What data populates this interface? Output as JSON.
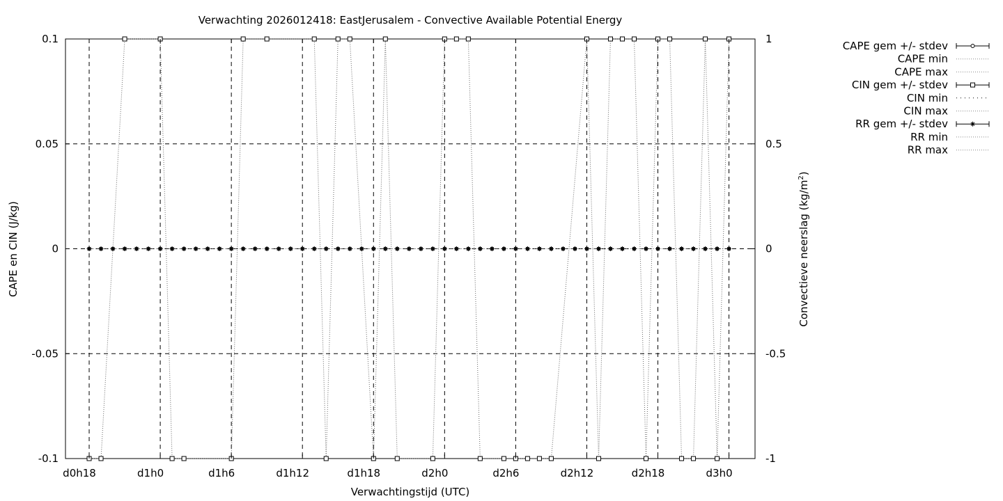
{
  "chart_data": {
    "type": "line",
    "title": "Verwachting 2026012418: EastJerusalem - Convective Available Potential Energy",
    "xlabel": "Verwachtingstijd (UTC)",
    "ylabel": "CAPE en CIN (J/kg)",
    "y2label_main": "Convectieve neerslag (kg/m",
    "y2label_sup": "2",
    "y2label_end": ")",
    "x_ticks": [
      "d0h18",
      "d1h0",
      "d1h6",
      "d1h12",
      "d1h18",
      "d2h0",
      "d2h6",
      "d2h12",
      "d2h18",
      "d3h0"
    ],
    "x_tick_hours": [
      18,
      24,
      30,
      36,
      42,
      48,
      54,
      60,
      66,
      72
    ],
    "xlim_hours": [
      16,
      74.2
    ],
    "ylim": [
      -0.1,
      0.1
    ],
    "y_ticks": [
      "0.1",
      "0.05",
      "0",
      "-0.05",
      "-0.1"
    ],
    "y_tick_values": [
      0.1,
      0.05,
      0,
      -0.05,
      -0.1
    ],
    "y2lim": [
      -1,
      1
    ],
    "y2_ticks": [
      "1",
      "0.5",
      "0",
      "-0.5",
      "-1"
    ],
    "y2_tick_values": [
      1,
      0.5,
      0,
      -0.5,
      -1
    ],
    "grid": true,
    "legend_position": "outside-right",
    "series": [
      {
        "name": "CAPE gem +/- stdev",
        "marker": "circle",
        "x_hours": [
          18,
          19,
          20,
          21,
          22,
          23,
          24,
          25,
          26,
          27,
          28,
          29,
          30,
          31,
          32,
          33,
          34,
          35,
          36,
          37,
          38,
          39,
          40,
          41,
          42,
          43,
          44,
          45,
          46,
          47,
          48,
          49,
          50,
          51,
          52,
          53,
          54,
          55,
          56,
          57,
          58,
          59,
          60,
          61,
          62,
          63,
          64,
          65,
          66,
          67,
          68,
          69,
          70,
          71,
          72
        ],
        "values": [
          0,
          0,
          0,
          0,
          0,
          0,
          0,
          0,
          0,
          0,
          0,
          0,
          0,
          0,
          0,
          0,
          0,
          0,
          0,
          0,
          0,
          0,
          0,
          0,
          0,
          0,
          0,
          0,
          0,
          0,
          0,
          0,
          0,
          0,
          0,
          0,
          0,
          0,
          0,
          0,
          0,
          0,
          0,
          0,
          0,
          0,
          0,
          0,
          0,
          0,
          0,
          0,
          0,
          0,
          0
        ]
      },
      {
        "name": "CAPE min",
        "values": []
      },
      {
        "name": "CAPE max",
        "values": []
      },
      {
        "name": "CIN gem +/- stdev",
        "marker": "square",
        "x_hours": [
          18,
          19,
          21,
          24,
          25,
          26,
          30,
          31,
          33,
          37,
          38,
          39,
          40,
          42,
          43,
          44,
          47,
          48,
          49,
          50,
          51,
          53,
          54,
          55,
          56,
          57,
          60,
          61,
          62,
          63,
          64,
          65,
          66,
          67,
          68,
          69,
          70,
          71,
          72
        ],
        "values": [
          -0.1,
          -0.1,
          0.1,
          0.1,
          -0.1,
          -0.1,
          -0.1,
          0.1,
          0.1,
          0.1,
          -0.1,
          0.1,
          0.1,
          -0.1,
          0.1,
          -0.1,
          -0.1,
          0.1,
          0.1,
          0.1,
          -0.1,
          -0.1,
          -0.1,
          -0.1,
          -0.1,
          -0.1,
          0.1,
          -0.1,
          0.1,
          0.1,
          0.1,
          -0.1,
          0.1,
          0.1,
          -0.1,
          -0.1,
          0.1,
          -0.1,
          0.1
        ]
      },
      {
        "name": "CIN min",
        "values": []
      },
      {
        "name": "CIN max",
        "values": []
      },
      {
        "name": "RR gem +/- stdev",
        "marker": "star",
        "x_hours": [
          18,
          19,
          20,
          21,
          22,
          23,
          24,
          25,
          26,
          27,
          28,
          29,
          30,
          31,
          32,
          33,
          34,
          35,
          36,
          37,
          38,
          39,
          40,
          41,
          42,
          43,
          44,
          45,
          46,
          47,
          48,
          49,
          50,
          51,
          52,
          53,
          54,
          55,
          56,
          57,
          58,
          59,
          60,
          61,
          62,
          63,
          64,
          65,
          66,
          67,
          68,
          69,
          70,
          71,
          72
        ],
        "values": [
          0,
          0,
          0,
          0,
          0,
          0,
          0,
          0,
          0,
          0,
          0,
          0,
          0,
          0,
          0,
          0,
          0,
          0,
          0,
          0,
          0,
          0,
          0,
          0,
          0,
          0,
          0,
          0,
          0,
          0,
          0,
          0,
          0,
          0,
          0,
          0,
          0,
          0,
          0,
          0,
          0,
          0,
          0,
          0,
          0,
          0,
          0,
          0,
          0,
          0,
          0,
          0,
          0,
          0,
          0
        ]
      },
      {
        "name": "RR min",
        "values": []
      },
      {
        "name": "RR max",
        "values": []
      }
    ],
    "legend": [
      {
        "label": "CAPE gem +/- stdev",
        "style": "errorbar",
        "marker": "circle"
      },
      {
        "label": "CAPE min",
        "style": "dotted"
      },
      {
        "label": "CAPE max",
        "style": "dotted"
      },
      {
        "label": "CIN gem +/- stdev",
        "style": "errorbar",
        "marker": "square"
      },
      {
        "label": "CIN min",
        "style": "dotted-sparse"
      },
      {
        "label": "CIN max",
        "style": "dotted"
      },
      {
        "label": "RR gem +/- stdev",
        "style": "errorbar",
        "marker": "star"
      },
      {
        "label": "RR min",
        "style": "dotted"
      },
      {
        "label": "RR max",
        "style": "dotted"
      }
    ]
  }
}
